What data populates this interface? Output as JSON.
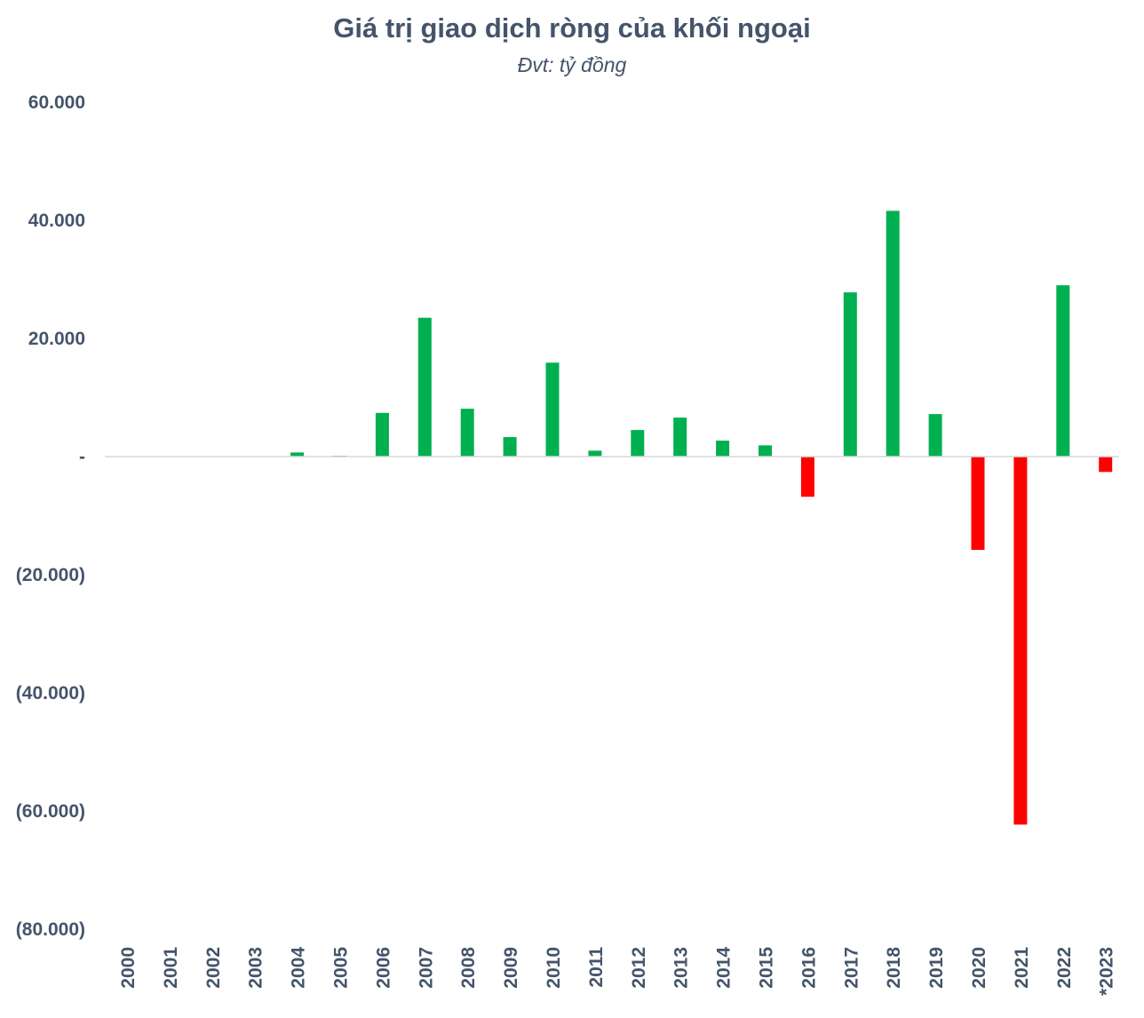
{
  "chart_data": {
    "type": "bar",
    "title": "Giá trị giao dịch ròng của khối ngoại",
    "subtitle": "Đvt: tỷ đồng",
    "xlabel": "",
    "ylabel": "",
    "ylim": [
      -80000,
      60000
    ],
    "yticks": [
      60000,
      40000,
      20000,
      0,
      -20000,
      -40000,
      -60000,
      -80000
    ],
    "ytick_labels": [
      "60.000",
      "40.000",
      "20.000",
      "-",
      "(20.000)",
      "(40.000)",
      "(60.000)",
      "(80.000)"
    ],
    "grid": false,
    "legend": "none",
    "categories": [
      "2000",
      "2001",
      "2002",
      "2003",
      "2004",
      "2005",
      "2006",
      "2007",
      "2008",
      "2009",
      "2010",
      "2011",
      "2012",
      "2013",
      "2014",
      "2015",
      "2016",
      "2017",
      "2018",
      "2019",
      "2020",
      "2021",
      "2022",
      "*2023"
    ],
    "values": [
      0,
      0,
      0,
      0,
      700,
      150,
      7400,
      23500,
      8100,
      3300,
      15900,
      1000,
      4500,
      6600,
      2700,
      1900,
      -6800,
      27800,
      41600,
      7200,
      -15800,
      -62300,
      29000,
      -2600
    ],
    "colors": {
      "positive": "#00b050",
      "negative": "#ff0000",
      "axis": "#d9d9d9",
      "text": "#44546a"
    }
  }
}
